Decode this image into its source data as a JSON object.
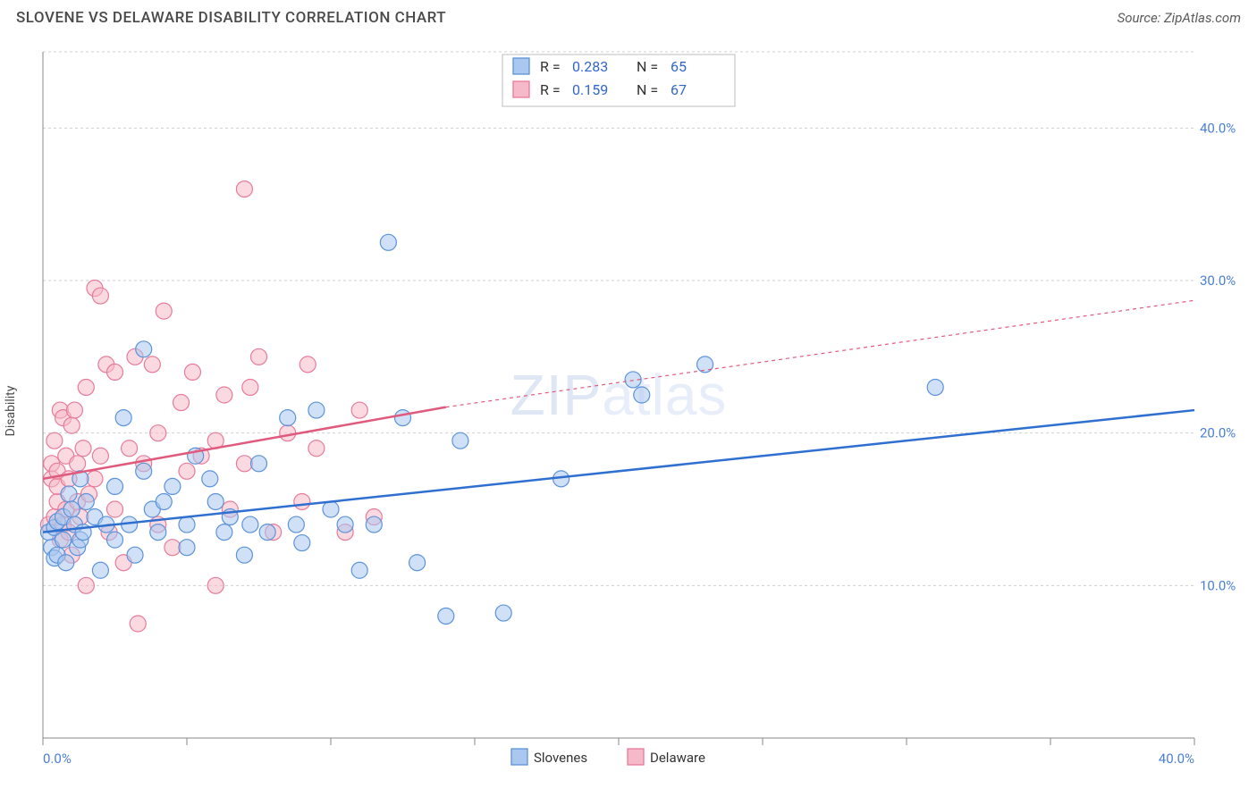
{
  "header": {
    "title": "SLOVENE VS DELAWARE DISABILITY CORRELATION CHART",
    "source": "Source: ZipAtlas.com"
  },
  "ylabel": "Disability",
  "watermark": {
    "part1": "ZIP",
    "part2": "atlas"
  },
  "chart": {
    "type": "scatter",
    "xlim": [
      0,
      40
    ],
    "ylim": [
      0,
      45
    ],
    "xtick_positions": [
      0,
      5,
      10,
      15,
      20,
      25,
      30,
      35,
      40
    ],
    "xtick_labels_shown": {
      "0": "0.0%",
      "40": "40.0%"
    },
    "ytick_positions": [
      10,
      20,
      30,
      40
    ],
    "ytick_labels": [
      "10.0%",
      "20.0%",
      "30.0%",
      "40.0%"
    ],
    "background_color": "#ffffff",
    "grid_color": "#d0d0d0",
    "marker_radius": 9,
    "marker_opacity": 0.55,
    "series": {
      "slovenes": {
        "label": "Slovenes",
        "color_fill": "#a9c7ef",
        "color_stroke": "#5c93da",
        "trend_color": "#2f6fd0",
        "R": "0.283",
        "N": "65",
        "trend": {
          "x1": 0,
          "y1": 13.5,
          "x2": 40,
          "y2": 21.5
        },
        "points": [
          [
            0.2,
            13.5
          ],
          [
            0.3,
            12.5
          ],
          [
            0.4,
            13.8
          ],
          [
            0.4,
            11.8
          ],
          [
            0.5,
            14.2
          ],
          [
            0.5,
            12.0
          ],
          [
            0.7,
            14.5
          ],
          [
            0.7,
            13.0
          ],
          [
            0.8,
            11.5
          ],
          [
            0.9,
            16.0
          ],
          [
            1.0,
            15.0
          ],
          [
            1.1,
            14.0
          ],
          [
            1.2,
            12.5
          ],
          [
            1.3,
            17.0
          ],
          [
            1.3,
            13.0
          ],
          [
            1.4,
            13.5
          ],
          [
            1.5,
            15.5
          ],
          [
            1.8,
            14.5
          ],
          [
            2.0,
            11.0
          ],
          [
            2.2,
            14.0
          ],
          [
            2.5,
            16.5
          ],
          [
            2.5,
            13.0
          ],
          [
            2.8,
            21.0
          ],
          [
            3.0,
            14.0
          ],
          [
            3.2,
            12.0
          ],
          [
            3.5,
            17.5
          ],
          [
            3.5,
            25.5
          ],
          [
            3.8,
            15.0
          ],
          [
            4.0,
            13.5
          ],
          [
            4.2,
            15.5
          ],
          [
            4.5,
            16.5
          ],
          [
            5.0,
            14.0
          ],
          [
            5.0,
            12.5
          ],
          [
            5.3,
            18.5
          ],
          [
            5.8,
            17.0
          ],
          [
            6.0,
            15.5
          ],
          [
            6.3,
            13.5
          ],
          [
            6.5,
            14.5
          ],
          [
            7.0,
            12.0
          ],
          [
            7.2,
            14.0
          ],
          [
            7.5,
            18.0
          ],
          [
            7.8,
            13.5
          ],
          [
            8.5,
            21.0
          ],
          [
            8.8,
            14.0
          ],
          [
            9.0,
            12.8
          ],
          [
            9.5,
            21.5
          ],
          [
            10.0,
            15.0
          ],
          [
            10.5,
            14.0
          ],
          [
            11.0,
            11.0
          ],
          [
            11.5,
            14.0
          ],
          [
            12.0,
            32.5
          ],
          [
            12.5,
            21.0
          ],
          [
            13.0,
            11.5
          ],
          [
            14.0,
            8.0
          ],
          [
            14.5,
            19.5
          ],
          [
            16.0,
            8.2
          ],
          [
            18.0,
            17.0
          ],
          [
            20.5,
            23.5
          ],
          [
            20.8,
            22.5
          ],
          [
            23.0,
            24.5
          ],
          [
            31.0,
            23.0
          ]
        ]
      },
      "delaware": {
        "label": "Delaware",
        "color_fill": "#f5b9c9",
        "color_stroke": "#e87b9a",
        "trend_color": "#e05a7d",
        "R": "0.159",
        "N": "67",
        "trend_solid": {
          "x1": 0,
          "y1": 17.0,
          "x2": 14,
          "y2": 21.7
        },
        "trend_dash": {
          "x1": 14,
          "y1": 21.7,
          "x2": 40,
          "y2": 28.7
        },
        "points": [
          [
            0.2,
            14.0
          ],
          [
            0.3,
            17.0
          ],
          [
            0.3,
            18.0
          ],
          [
            0.4,
            14.5
          ],
          [
            0.4,
            19.5
          ],
          [
            0.5,
            15.5
          ],
          [
            0.5,
            16.5
          ],
          [
            0.5,
            17.5
          ],
          [
            0.6,
            13.0
          ],
          [
            0.6,
            21.5
          ],
          [
            0.7,
            14.0
          ],
          [
            0.7,
            21.0
          ],
          [
            0.8,
            18.5
          ],
          [
            0.8,
            15.0
          ],
          [
            0.9,
            17.0
          ],
          [
            0.9,
            13.5
          ],
          [
            1.0,
            20.5
          ],
          [
            1.0,
            12.0
          ],
          [
            1.1,
            21.5
          ],
          [
            1.2,
            15.5
          ],
          [
            1.2,
            18.0
          ],
          [
            1.3,
            14.5
          ],
          [
            1.4,
            19.0
          ],
          [
            1.5,
            10.0
          ],
          [
            1.5,
            23.0
          ],
          [
            1.6,
            16.0
          ],
          [
            1.8,
            29.5
          ],
          [
            1.8,
            17.0
          ],
          [
            2.0,
            29.0
          ],
          [
            2.0,
            18.5
          ],
          [
            2.2,
            24.5
          ],
          [
            2.3,
            13.5
          ],
          [
            2.5,
            24.0
          ],
          [
            2.5,
            15.0
          ],
          [
            2.8,
            11.5
          ],
          [
            3.0,
            19.0
          ],
          [
            3.2,
            25.0
          ],
          [
            3.3,
            7.5
          ],
          [
            3.5,
            18.0
          ],
          [
            3.8,
            24.5
          ],
          [
            4.0,
            14.0
          ],
          [
            4.0,
            20.0
          ],
          [
            4.2,
            28.0
          ],
          [
            4.5,
            12.5
          ],
          [
            4.8,
            22.0
          ],
          [
            5.0,
            17.5
          ],
          [
            5.2,
            24.0
          ],
          [
            5.5,
            18.5
          ],
          [
            6.0,
            10.0
          ],
          [
            6.0,
            19.5
          ],
          [
            6.3,
            22.5
          ],
          [
            6.5,
            15.0
          ],
          [
            7.0,
            36.0
          ],
          [
            7.0,
            18.0
          ],
          [
            7.2,
            23.0
          ],
          [
            7.5,
            25.0
          ],
          [
            8.0,
            13.5
          ],
          [
            8.5,
            20.0
          ],
          [
            9.0,
            15.5
          ],
          [
            9.2,
            24.5
          ],
          [
            9.5,
            19.0
          ],
          [
            10.5,
            13.5
          ],
          [
            11.0,
            21.5
          ],
          [
            11.5,
            14.5
          ]
        ]
      }
    }
  },
  "top_legend": {
    "rows": [
      {
        "series": "slovenes",
        "R_label": "R =",
        "N_label": "N ="
      },
      {
        "series": "delaware",
        "R_label": "R =",
        "N_label": "N ="
      }
    ]
  }
}
